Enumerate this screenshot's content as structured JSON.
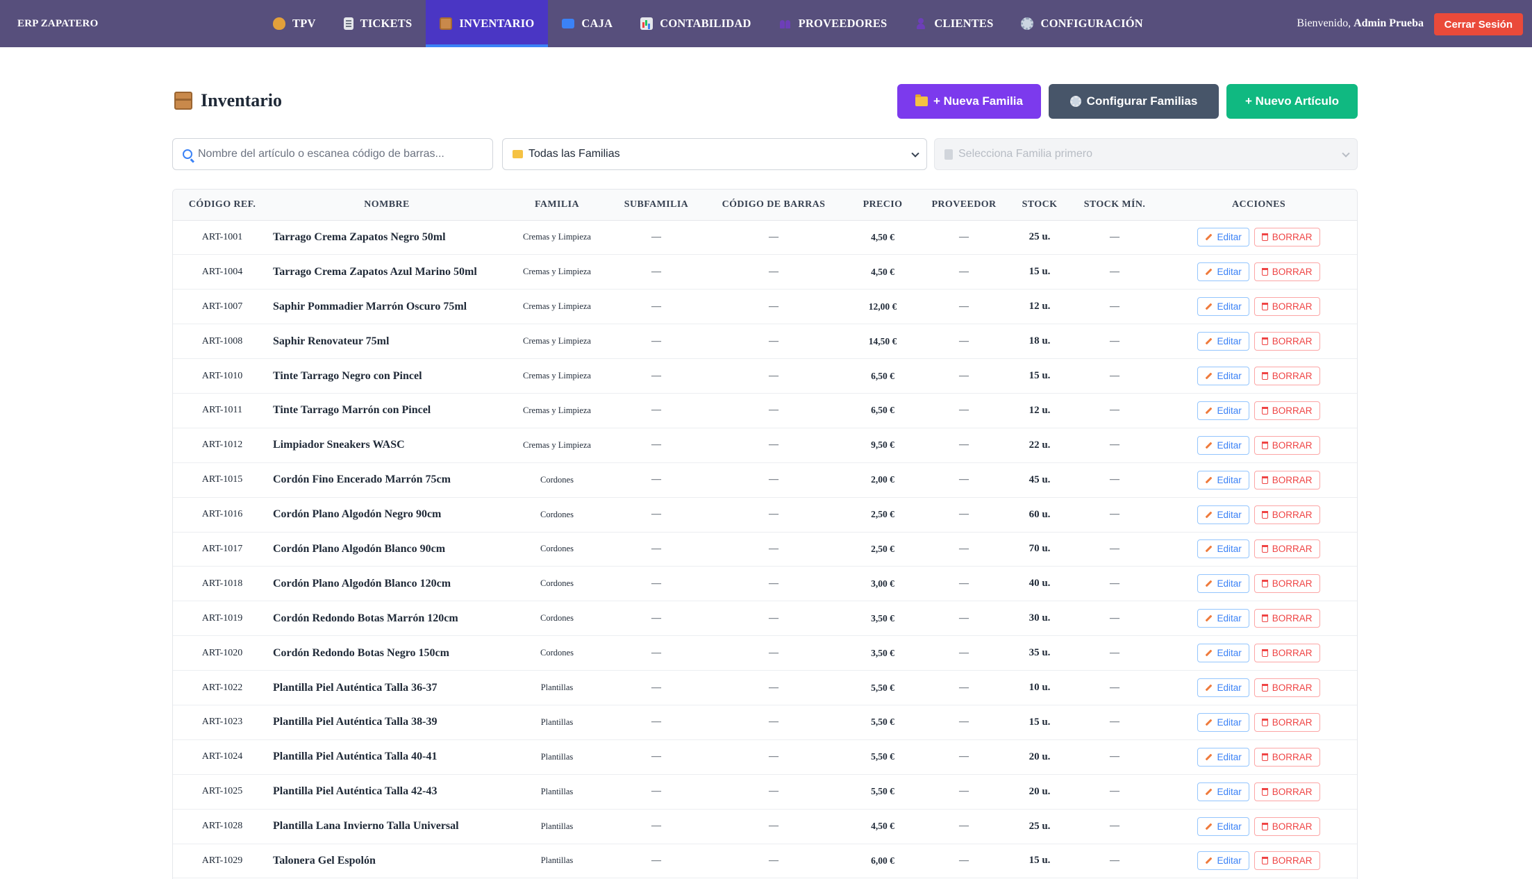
{
  "brand": "ERP ZAPATERO",
  "nav": [
    {
      "label": "TPV",
      "icon": "shopping-bag-icon",
      "active": false
    },
    {
      "label": "TICKETS",
      "icon": "receipt-icon",
      "active": false
    },
    {
      "label": "INVENTARIO",
      "icon": "package-icon",
      "active": true
    },
    {
      "label": "CAJA",
      "icon": "atm-icon",
      "active": false
    },
    {
      "label": "CONTABILIDAD",
      "icon": "bar-chart-icon",
      "active": false
    },
    {
      "label": "PROVEEDORES",
      "icon": "people-icon",
      "active": false
    },
    {
      "label": "CLIENTES",
      "icon": "person-icon",
      "active": false
    },
    {
      "label": "CONFIGURACIÓN",
      "icon": "gear-icon",
      "active": false
    }
  ],
  "user": {
    "greeting": "Bienvenido,",
    "name": "Admin Prueba"
  },
  "logout_label": "Cerrar Sesión",
  "page": {
    "title": "Inventario",
    "buttons": {
      "nueva_familia": "+ Nueva Familia",
      "configurar_familias": "Configurar Familias",
      "nuevo_articulo": "+ Nuevo Artículo"
    }
  },
  "filters": {
    "search_placeholder": "Nombre del artículo o escanea código de barras...",
    "family_selected": "Todas las Familias",
    "subfamily_placeholder": "Selecciona Familia primero"
  },
  "table": {
    "headers": [
      "CÓDIGO REF.",
      "NOMBRE",
      "FAMILIA",
      "SUBFAMILIA",
      "CÓDIGO DE BARRAS",
      "PRECIO",
      "PROVEEDOR",
      "STOCK",
      "STOCK MÍN.",
      "ACCIONES"
    ],
    "edit_label": "Editar",
    "delete_label": "BORRAR",
    "rows": [
      {
        "code": "ART-1001",
        "name": "Tarrago Crema Zapatos Negro 50ml",
        "family": "Cremas y Limpieza",
        "subfamily": "—",
        "barcode": "—",
        "price": "4,50 €",
        "supplier": "—",
        "stock": "25 u.",
        "stock_min": "—"
      },
      {
        "code": "ART-1004",
        "name": "Tarrago Crema Zapatos Azul Marino 50ml",
        "family": "Cremas y Limpieza",
        "subfamily": "—",
        "barcode": "—",
        "price": "4,50 €",
        "supplier": "—",
        "stock": "15 u.",
        "stock_min": "—"
      },
      {
        "code": "ART-1007",
        "name": "Saphir Pommadier Marrón Oscuro 75ml",
        "family": "Cremas y Limpieza",
        "subfamily": "—",
        "barcode": "—",
        "price": "12,00 €",
        "supplier": "—",
        "stock": "12 u.",
        "stock_min": "—"
      },
      {
        "code": "ART-1008",
        "name": "Saphir Renovateur 75ml",
        "family": "Cremas y Limpieza",
        "subfamily": "—",
        "barcode": "—",
        "price": "14,50 €",
        "supplier": "—",
        "stock": "18 u.",
        "stock_min": "—"
      },
      {
        "code": "ART-1010",
        "name": "Tinte Tarrago Negro con Pincel",
        "family": "Cremas y Limpieza",
        "subfamily": "—",
        "barcode": "—",
        "price": "6,50 €",
        "supplier": "—",
        "stock": "15 u.",
        "stock_min": "—"
      },
      {
        "code": "ART-1011",
        "name": "Tinte Tarrago Marrón con Pincel",
        "family": "Cremas y Limpieza",
        "subfamily": "—",
        "barcode": "—",
        "price": "6,50 €",
        "supplier": "—",
        "stock": "12 u.",
        "stock_min": "—"
      },
      {
        "code": "ART-1012",
        "name": "Limpiador Sneakers WASC",
        "family": "Cremas y Limpieza",
        "subfamily": "—",
        "barcode": "—",
        "price": "9,50 €",
        "supplier": "—",
        "stock": "22 u.",
        "stock_min": "—"
      },
      {
        "code": "ART-1015",
        "name": "Cordón Fino Encerado Marrón 75cm",
        "family": "Cordones",
        "subfamily": "—",
        "barcode": "—",
        "price": "2,00 €",
        "supplier": "—",
        "stock": "45 u.",
        "stock_min": "—"
      },
      {
        "code": "ART-1016",
        "name": "Cordón Plano Algodón Negro 90cm",
        "family": "Cordones",
        "subfamily": "—",
        "barcode": "—",
        "price": "2,50 €",
        "supplier": "—",
        "stock": "60 u.",
        "stock_min": "—"
      },
      {
        "code": "ART-1017",
        "name": "Cordón Plano Algodón Blanco 90cm",
        "family": "Cordones",
        "subfamily": "—",
        "barcode": "—",
        "price": "2,50 €",
        "supplier": "—",
        "stock": "70 u.",
        "stock_min": "—"
      },
      {
        "code": "ART-1018",
        "name": "Cordón Plano Algodón Blanco 120cm",
        "family": "Cordones",
        "subfamily": "—",
        "barcode": "—",
        "price": "3,00 €",
        "supplier": "—",
        "stock": "40 u.",
        "stock_min": "—"
      },
      {
        "code": "ART-1019",
        "name": "Cordón Redondo Botas Marrón 120cm",
        "family": "Cordones",
        "subfamily": "—",
        "barcode": "—",
        "price": "3,50 €",
        "supplier": "—",
        "stock": "30 u.",
        "stock_min": "—"
      },
      {
        "code": "ART-1020",
        "name": "Cordón Redondo Botas Negro 150cm",
        "family": "Cordones",
        "subfamily": "—",
        "barcode": "—",
        "price": "3,50 €",
        "supplier": "—",
        "stock": "35 u.",
        "stock_min": "—"
      },
      {
        "code": "ART-1022",
        "name": "Plantilla Piel Auténtica Talla 36-37",
        "family": "Plantillas",
        "subfamily": "—",
        "barcode": "—",
        "price": "5,50 €",
        "supplier": "—",
        "stock": "10 u.",
        "stock_min": "—"
      },
      {
        "code": "ART-1023",
        "name": "Plantilla Piel Auténtica Talla 38-39",
        "family": "Plantillas",
        "subfamily": "—",
        "barcode": "—",
        "price": "5,50 €",
        "supplier": "—",
        "stock": "15 u.",
        "stock_min": "—"
      },
      {
        "code": "ART-1024",
        "name": "Plantilla Piel Auténtica Talla 40-41",
        "family": "Plantillas",
        "subfamily": "—",
        "barcode": "—",
        "price": "5,50 €",
        "supplier": "—",
        "stock": "20 u.",
        "stock_min": "—"
      },
      {
        "code": "ART-1025",
        "name": "Plantilla Piel Auténtica Talla 42-43",
        "family": "Plantillas",
        "subfamily": "—",
        "barcode": "—",
        "price": "5,50 €",
        "supplier": "—",
        "stock": "20 u.",
        "stock_min": "—"
      },
      {
        "code": "ART-1028",
        "name": "Plantilla Lana Invierno Talla Universal",
        "family": "Plantillas",
        "subfamily": "—",
        "barcode": "—",
        "price": "4,50 €",
        "supplier": "—",
        "stock": "25 u.",
        "stock_min": "—"
      },
      {
        "code": "ART-1029",
        "name": "Talonera Gel Espolón",
        "family": "Plantillas",
        "subfamily": "—",
        "barcode": "—",
        "price": "6,00 €",
        "supplier": "—",
        "stock": "15 u.",
        "stock_min": "—"
      }
    ]
  },
  "colors": {
    "nav_bg": "#574f7c",
    "nav_active": "#4a36c4",
    "logout": "#ea4a3a",
    "nueva_familia": "#7c3aed",
    "configurar_familias": "#475569",
    "nuevo_articulo": "#10b981"
  }
}
